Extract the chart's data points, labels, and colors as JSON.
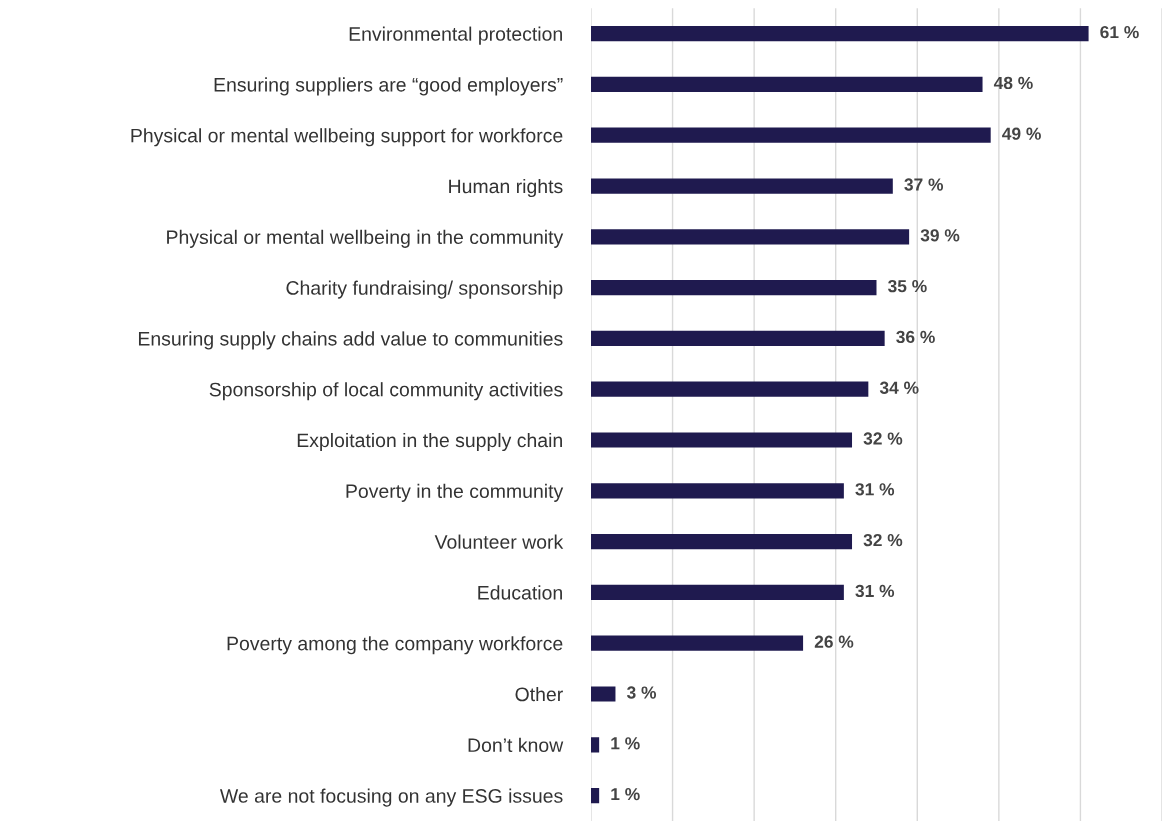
{
  "chart_data": {
    "type": "bar",
    "orientation": "horizontal",
    "categories": [
      "Environmental protection",
      "Ensuring suppliers are “good employers”",
      "Physical or mental wellbeing support for workforce",
      "Human rights",
      "Physical or mental wellbeing in the community",
      "Charity fundraising/ sponsorship",
      "Ensuring supply chains add value to communities",
      "Sponsorship of local community activities",
      "Exploitation in the supply chain",
      "Poverty in the community",
      "Volunteer work",
      "Education",
      "Poverty among the company workforce",
      "Other",
      "Don’t know",
      "We are not focusing on any ESG issues"
    ],
    "values": [
      61,
      48,
      49,
      37,
      39,
      35,
      36,
      34,
      32,
      31,
      32,
      31,
      26,
      3,
      1,
      1
    ],
    "value_labels": [
      "61 %",
      "48 %",
      "49 %",
      "37 %",
      "39 %",
      "35 %",
      "36 %",
      "34 %",
      "32 %",
      "31 %",
      "32 %",
      "31 %",
      "26 %",
      "3 %",
      "1 %",
      "1 %"
    ],
    "color": "#1f1a4f",
    "xlim": [
      0,
      70
    ],
    "xticks": [
      {
        "value": 0,
        "label": null
      },
      {
        "value": 10,
        "label": null
      },
      {
        "value": 20,
        "label": null
      },
      {
        "value": 30,
        "label": null
      },
      {
        "value": 40,
        "label": null
      },
      {
        "value": 50,
        "label": null
      },
      {
        "value": 60,
        "label": null
      },
      {
        "value": 70,
        "label": null
      }
    ],
    "grid": "x",
    "tick_labels": "y",
    "legend": false
  }
}
